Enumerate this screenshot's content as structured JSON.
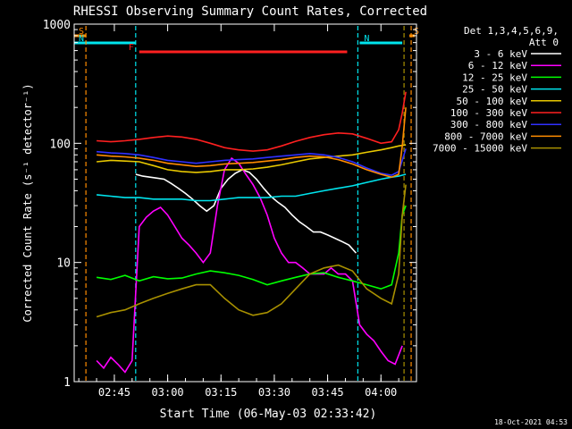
{
  "chart_data": {
    "type": "line",
    "title": "RHESSI Observing Summary Count Rates, Corrected",
    "xlabel": "Start Time (06-May-03 02:33:42)",
    "ylabel": "Corrected Count Rate (s⁻¹ detector⁻¹)",
    "y_scale": "log",
    "ylim": [
      1,
      1000
    ],
    "xlim": [
      "02:33:42",
      "04:10:00"
    ],
    "x_ticks": [
      "02:45",
      "03:00",
      "03:15",
      "03:30",
      "03:45",
      "04:00"
    ],
    "y_ticks": [
      "1",
      "10",
      "100",
      "1000"
    ],
    "legend_header": [
      "Det 1,3,4,5,6,9,",
      "Att 0"
    ],
    "legend_position": "right",
    "timestamp": "18-Oct-2021 04:53",
    "flags": [
      {
        "label": "S",
        "color": "#ff8c00",
        "start": "02:33:42",
        "end": "02:37:00"
      },
      {
        "label": "N",
        "color": "#00e5ee",
        "start": "02:33:42",
        "end": "02:51:00"
      },
      {
        "label": "N",
        "color": "#00e5ee",
        "start": "03:54:00",
        "end": "04:06:00"
      },
      {
        "label": "S",
        "color": "#ff8c00",
        "start": "04:08:00",
        "end": "04:09:30"
      },
      {
        "label": "F",
        "color": "#ff2020",
        "start": "02:52:00",
        "end": "03:50:30"
      }
    ],
    "vlines": [
      {
        "time": "02:37:00",
        "color": "#ff8c00"
      },
      {
        "time": "02:51:00",
        "color": "#00e5ee"
      },
      {
        "time": "03:53:30",
        "color": "#00e5ee"
      },
      {
        "time": "04:06:30",
        "color": "#a89000"
      },
      {
        "time": "04:08:30",
        "color": "#ff8c00"
      }
    ],
    "series": [
      {
        "name": "3 - 6 keV",
        "color": "#ffffff",
        "x": [
          "02:51",
          "02:53",
          "02:55",
          "02:57",
          "02:59",
          "03:01",
          "03:03",
          "03:05",
          "03:07",
          "03:09",
          "03:11",
          "03:13",
          "03:15",
          "03:17",
          "03:19",
          "03:21",
          "03:23",
          "03:25",
          "03:27",
          "03:29",
          "03:31",
          "03:33",
          "03:35",
          "03:37",
          "03:39",
          "03:41",
          "03:43",
          "03:45",
          "03:47",
          "03:49",
          "03:51",
          "03:53"
        ],
        "y": [
          55,
          53,
          52,
          51,
          50,
          46,
          42,
          38,
          34,
          30,
          27,
          30,
          42,
          50,
          56,
          60,
          57,
          50,
          42,
          36,
          32,
          29,
          25,
          22,
          20,
          18,
          18,
          17,
          16,
          15,
          14,
          12
        ]
      },
      {
        "name": "6 - 12 keV",
        "color": "#ff00ff",
        "x": [
          "02:40",
          "02:42",
          "02:44",
          "02:46",
          "02:48",
          "02:50",
          "02:52",
          "02:54",
          "02:56",
          "02:58",
          "03:00",
          "03:02",
          "03:04",
          "03:06",
          "03:08",
          "03:10",
          "03:12",
          "03:14",
          "03:16",
          "03:18",
          "03:20",
          "03:22",
          "03:24",
          "03:26",
          "03:28",
          "03:30",
          "03:32",
          "03:34",
          "03:36",
          "03:38",
          "03:40",
          "03:42",
          "03:44",
          "03:46",
          "03:48",
          "03:50",
          "03:52",
          "03:54",
          "03:56",
          "03:58",
          "04:00",
          "04:02",
          "04:04",
          "04:06"
        ],
        "y": [
          1.5,
          1.3,
          1.6,
          1.4,
          1.2,
          1.5,
          20,
          24,
          27,
          29,
          25,
          20,
          16,
          14,
          12,
          10,
          12,
          30,
          60,
          75,
          68,
          55,
          45,
          35,
          25,
          16,
          12,
          10,
          10,
          9,
          8,
          8,
          8,
          9,
          8,
          8,
          7,
          3,
          2.5,
          2.2,
          1.8,
          1.5,
          1.4,
          2.0
        ]
      },
      {
        "name": "12 - 25 keV",
        "color": "#00ff00",
        "x": [
          "02:40",
          "02:44",
          "02:48",
          "02:52",
          "02:56",
          "03:00",
          "03:04",
          "03:08",
          "03:12",
          "03:16",
          "03:20",
          "03:24",
          "03:28",
          "03:32",
          "03:36",
          "03:40",
          "03:44",
          "03:48",
          "03:52",
          "03:56",
          "04:00",
          "04:03",
          "04:05",
          "04:06",
          "04:07"
        ],
        "y": [
          7.5,
          7.2,
          7.8,
          7.0,
          7.6,
          7.3,
          7.4,
          8.0,
          8.5,
          8.2,
          7.8,
          7.2,
          6.5,
          7.0,
          7.5,
          8.0,
          8.2,
          7.5,
          7.0,
          6.5,
          6.0,
          6.5,
          12,
          25,
          30
        ]
      },
      {
        "name": "25 - 50 keV",
        "color": "#00e5ee",
        "x": [
          "02:40",
          "02:44",
          "02:48",
          "02:52",
          "02:56",
          "03:00",
          "03:04",
          "03:08",
          "03:12",
          "03:16",
          "03:20",
          "03:24",
          "03:28",
          "03:32",
          "03:36",
          "03:40",
          "03:44",
          "03:48",
          "03:52",
          "03:56",
          "04:00",
          "04:03",
          "04:05",
          "04:06",
          "04:07"
        ],
        "y": [
          37,
          36,
          35,
          35,
          34,
          34,
          34,
          33,
          33,
          34,
          35,
          35,
          35,
          36,
          36,
          38,
          40,
          42,
          44,
          47,
          50,
          52,
          53,
          54,
          55
        ]
      },
      {
        "name": "50 - 100 keV",
        "color": "#e8c800",
        "x": [
          "02:40",
          "02:44",
          "02:48",
          "02:52",
          "02:56",
          "03:00",
          "03:04",
          "03:08",
          "03:12",
          "03:16",
          "03:20",
          "03:24",
          "03:28",
          "03:32",
          "03:36",
          "03:40",
          "03:44",
          "03:48",
          "03:52",
          "03:56",
          "04:00",
          "04:03",
          "04:05",
          "04:06",
          "04:07"
        ],
        "y": [
          70,
          72,
          71,
          70,
          65,
          60,
          58,
          57,
          58,
          60,
          60,
          61,
          63,
          66,
          70,
          74,
          76,
          78,
          80,
          84,
          88,
          92,
          95,
          96,
          97
        ]
      },
      {
        "name": "100 - 300 keV",
        "color": "#ff2020",
        "x": [
          "02:40",
          "02:44",
          "02:48",
          "02:52",
          "02:56",
          "03:00",
          "03:04",
          "03:08",
          "03:12",
          "03:16",
          "03:20",
          "03:24",
          "03:28",
          "03:32",
          "03:36",
          "03:40",
          "03:44",
          "03:48",
          "03:52",
          "03:56",
          "04:00",
          "04:03",
          "04:05",
          "04:06",
          "04:07"
        ],
        "y": [
          105,
          103,
          105,
          108,
          112,
          115,
          113,
          108,
          100,
          92,
          88,
          86,
          88,
          95,
          104,
          112,
          118,
          122,
          120,
          110,
          100,
          103,
          130,
          180,
          270
        ]
      },
      {
        "name": "300 - 800 keV",
        "color": "#3030ff",
        "x": [
          "02:40",
          "02:44",
          "02:48",
          "02:52",
          "02:56",
          "03:00",
          "03:04",
          "03:08",
          "03:12",
          "03:16",
          "03:20",
          "03:24",
          "03:28",
          "03:32",
          "03:36",
          "03:40",
          "03:44",
          "03:48",
          "03:52",
          "03:56",
          "04:00",
          "04:03",
          "04:05",
          "04:06",
          "04:07"
        ],
        "y": [
          85,
          83,
          82,
          80,
          76,
          72,
          70,
          68,
          70,
          72,
          73,
          74,
          76,
          78,
          80,
          82,
          80,
          76,
          70,
          62,
          56,
          54,
          58,
          72,
          90
        ]
      },
      {
        "name": "800 - 7000 keV",
        "color": "#ff8c00",
        "x": [
          "02:40",
          "02:44",
          "02:48",
          "02:52",
          "02:56",
          "03:00",
          "03:04",
          "03:08",
          "03:12",
          "03:16",
          "03:20",
          "03:24",
          "03:28",
          "03:32",
          "03:36",
          "03:40",
          "03:44",
          "03:48",
          "03:52",
          "03:56",
          "04:00",
          "04:03",
          "04:05",
          "04:06",
          "04:07"
        ],
        "y": [
          80,
          78,
          77,
          75,
          72,
          68,
          66,
          64,
          65,
          67,
          68,
          69,
          71,
          73,
          76,
          78,
          77,
          73,
          67,
          60,
          55,
          52,
          55,
          95,
          200
        ]
      },
      {
        "name": "7000 - 15000 keV",
        "color": "#a89000",
        "x": [
          "02:40",
          "02:44",
          "02:48",
          "02:52",
          "02:56",
          "03:00",
          "03:04",
          "03:08",
          "03:12",
          "03:16",
          "03:20",
          "03:24",
          "03:28",
          "03:32",
          "03:36",
          "03:40",
          "03:44",
          "03:48",
          "03:52",
          "03:56",
          "04:00",
          "04:03",
          "04:05",
          "04:06",
          "04:07"
        ],
        "y": [
          3.5,
          3.8,
          4.0,
          4.5,
          5.0,
          5.5,
          6.0,
          6.5,
          6.5,
          5.0,
          4.0,
          3.6,
          3.8,
          4.5,
          6.0,
          8.0,
          9.0,
          9.5,
          8.5,
          6.0,
          5.0,
          4.5,
          8.0,
          25,
          45
        ]
      }
    ]
  }
}
